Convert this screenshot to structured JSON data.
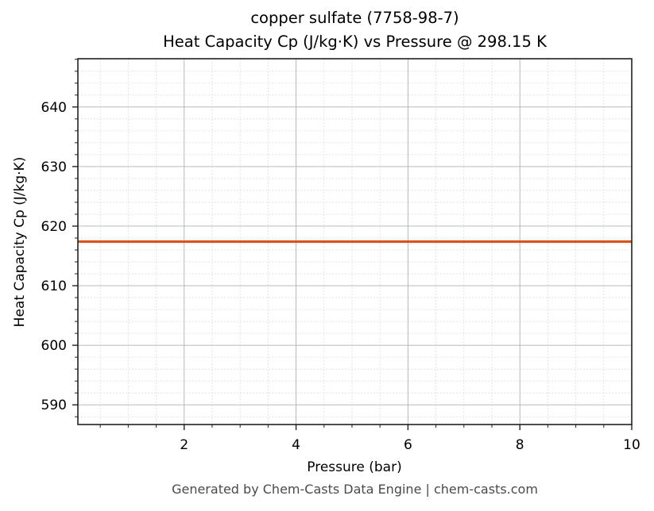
{
  "chart_data": {
    "type": "line",
    "title": "copper sulfate (7758-98-7)",
    "subtitle": "Heat Capacity Cp (J/kg·K) vs Pressure @ 298.15 K",
    "xlabel": "Pressure (bar)",
    "ylabel": "Heat Capacity Cp (J/kg·K)",
    "xlim": [
      0.1,
      10
    ],
    "ylim": [
      586.7,
      648.1
    ],
    "xticks": [
      2,
      4,
      6,
      8,
      10
    ],
    "yticks": [
      590,
      600,
      610,
      620,
      630,
      640
    ],
    "grid": {
      "major": true,
      "minor": true
    },
    "legend": null,
    "series": [
      {
        "name": "Heat Capacity Cp",
        "color": "#d9541e",
        "x": [
          0.1,
          1,
          2,
          3,
          4,
          5,
          6,
          7,
          8,
          9,
          10
        ],
        "y": [
          617.4,
          617.4,
          617.4,
          617.4,
          617.4,
          617.4,
          617.4,
          617.4,
          617.4,
          617.4,
          617.4
        ]
      }
    ]
  },
  "footer": "Generated by Chem-Casts Data Engine | chem-casts.com"
}
